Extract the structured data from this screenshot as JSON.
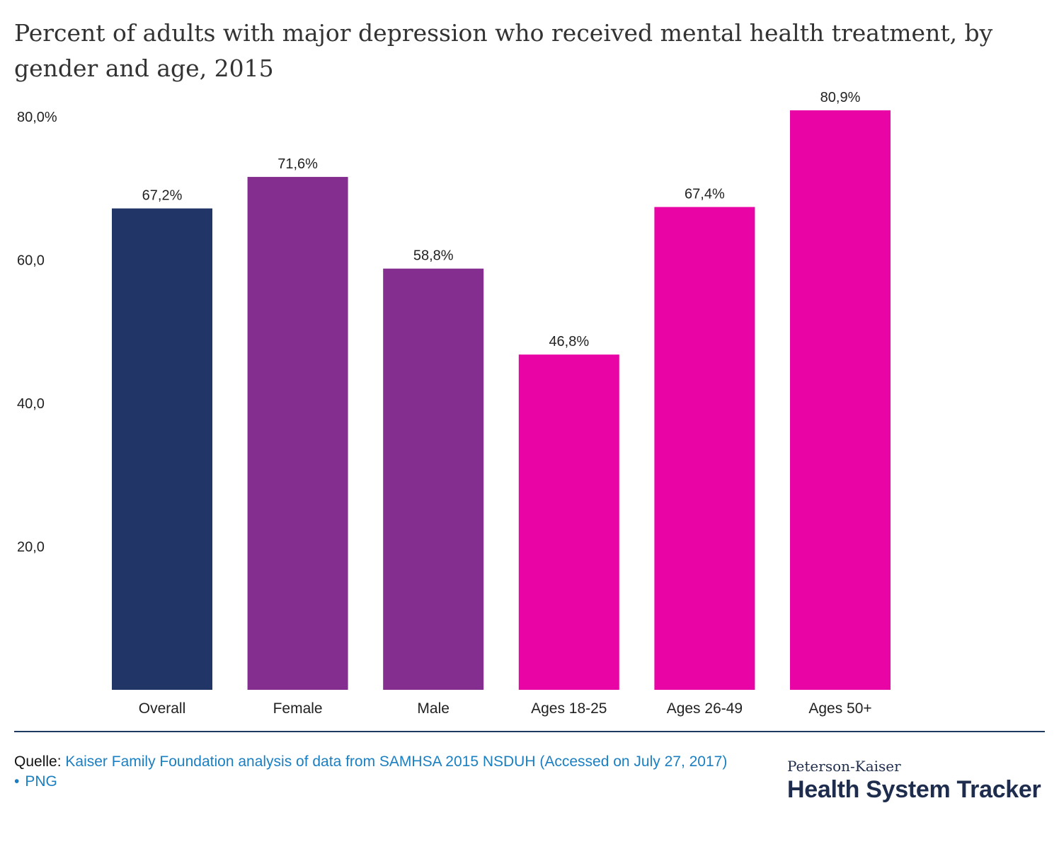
{
  "chart_data": {
    "type": "bar",
    "title": "Percent of adults with major depression who received mental health treatment, by gender and age, 2015",
    "xlabel": "",
    "ylabel": "",
    "categories": [
      "Overall",
      "Female",
      "Male",
      "Ages 18-25",
      "Ages 26-49",
      "Ages 50+"
    ],
    "values": [
      67.2,
      71.6,
      58.8,
      46.8,
      67.4,
      80.9
    ],
    "data_labels": [
      "67,2%",
      "71,6%",
      "58,8%",
      "46,8%",
      "67,4%",
      "80,9%"
    ],
    "colors": [
      "#213566",
      "#842e8f",
      "#842e8f",
      "#e905a5",
      "#e905a5",
      "#e905a5"
    ],
    "ylim": [
      0,
      80
    ],
    "yticks": [
      20,
      40,
      60,
      80
    ],
    "ytick_labels": [
      "20,0",
      "40,0",
      "60,0",
      "80,0%"
    ],
    "grid": false,
    "legend": "none"
  },
  "footer": {
    "source_prefix": "Quelle:",
    "source_text": "Kaiser Family Foundation analysis of data from SAMHSA 2015 NSDUH (Accessed on July 27, 2017)",
    "png_bullet": "•",
    "png_label": "PNG"
  },
  "brand": {
    "top": "Peterson-Kaiser",
    "main": "Health System Tracker",
    "color": "#1e2d4d"
  },
  "colors": {
    "divider": "#1e3a5f",
    "link": "#1a7fc1"
  }
}
